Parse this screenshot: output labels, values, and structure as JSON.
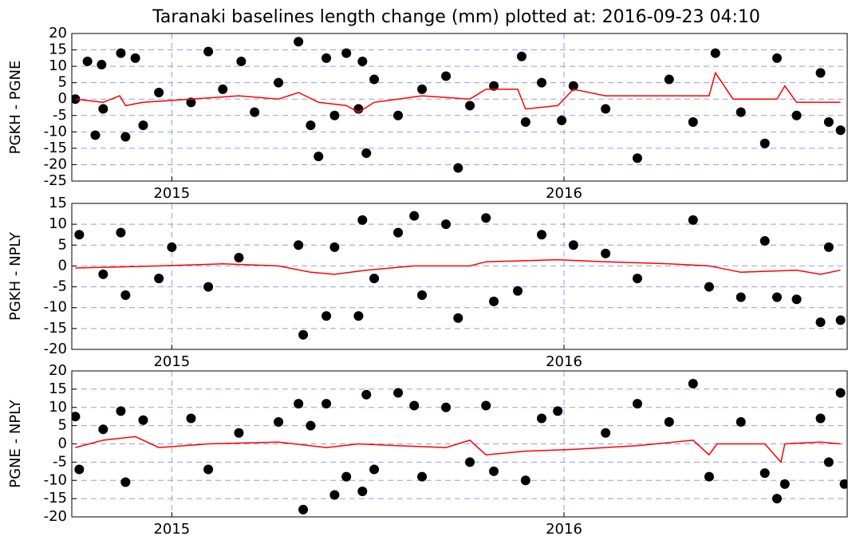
{
  "title": "Taranaki baselines length change (mm) plotted at: 2016-09-23 04:10",
  "chart_data": [
    {
      "type": "scatter",
      "ylabel": "PGKH - PGNE",
      "grid": true,
      "xlim": [
        2014.745,
        2016.722
      ],
      "xticks": [
        2015,
        2016
      ],
      "ylim": [
        -25,
        20
      ],
      "yticks": [
        -25,
        -20,
        -15,
        -10,
        -5,
        0,
        5,
        10,
        15,
        20
      ],
      "series": [
        {
          "style": "markers",
          "color": "#000000",
          "x": [
            2014.754,
            2014.785,
            2014.805,
            2014.821,
            2014.825,
            2014.87,
            2014.882,
            2014.907,
            2014.927,
            2014.967,
            2015.049,
            2015.093,
            2015.13,
            2015.177,
            2015.211,
            2015.272,
            2015.323,
            2015.354,
            2015.374,
            2015.394,
            2015.415,
            2015.445,
            2015.476,
            2015.486,
            2015.496,
            2015.516,
            2015.577,
            2015.638,
            2015.699,
            2015.73,
            2015.76,
            2015.821,
            2015.892,
            2015.902,
            2015.943,
            2015.994,
            2016.024,
            2016.106,
            2016.187,
            2016.268,
            2016.329,
            2016.386,
            2016.451,
            2016.512,
            2016.543,
            2016.593,
            2016.654,
            2016.675,
            2016.705
          ],
          "values": [
            0,
            11.5,
            -11,
            10.5,
            -3,
            14,
            -11.5,
            12.5,
            -8,
            2,
            -1,
            14.5,
            3,
            11.5,
            -4,
            5,
            17.5,
            -8,
            -17.5,
            12.5,
            -5,
            14,
            -3,
            11.5,
            -16.5,
            6,
            -5,
            3,
            7,
            -21,
            -2,
            4,
            13,
            -7,
            5,
            -6.5,
            4,
            -3,
            -18,
            6,
            -7,
            14,
            -4,
            -13.5,
            12.5,
            -5,
            8,
            -7,
            -9.5
          ]
        },
        {
          "style": "line",
          "color": "#ff0000",
          "x": [
            2014.754,
            2014.825,
            2014.867,
            2014.882,
            2014.927,
            2015.049,
            2015.171,
            2015.272,
            2015.323,
            2015.374,
            2015.445,
            2015.476,
            2015.516,
            2015.577,
            2015.638,
            2015.76,
            2015.801,
            2015.882,
            2015.902,
            2015.984,
            2016.024,
            2016.106,
            2016.268,
            2016.37,
            2016.386,
            2016.431,
            2016.543,
            2016.563,
            2016.593,
            2016.705
          ],
          "values": [
            0,
            -1,
            1,
            -2,
            -1,
            0,
            1,
            0,
            2,
            -1,
            -2,
            -4,
            -1,
            0,
            1,
            0,
            3,
            3,
            -3,
            -2,
            3,
            1,
            1,
            1,
            8,
            0,
            0,
            4,
            -1,
            -1
          ]
        }
      ]
    },
    {
      "type": "scatter",
      "ylabel": "PGKH - NPLY",
      "grid": true,
      "xlim": [
        2014.745,
        2016.722
      ],
      "xticks": [
        2015,
        2016
      ],
      "ylim": [
        -20,
        15
      ],
      "yticks": [
        -20,
        -15,
        -10,
        -5,
        0,
        5,
        10,
        15
      ],
      "series": [
        {
          "style": "markers",
          "color": "#000000",
          "x": [
            2014.764,
            2014.825,
            2014.87,
            2014.882,
            2014.967,
            2015.0,
            2015.093,
            2015.171,
            2015.323,
            2015.335,
            2015.394,
            2015.415,
            2015.476,
            2015.486,
            2015.516,
            2015.577,
            2015.618,
            2015.638,
            2015.699,
            2015.73,
            2015.801,
            2015.821,
            2015.882,
            2015.943,
            2016.024,
            2016.106,
            2016.187,
            2016.329,
            2016.37,
            2016.451,
            2016.512,
            2016.543,
            2016.593,
            2016.654,
            2016.675,
            2016.705
          ],
          "values": [
            7.5,
            -2,
            8,
            -7,
            -3,
            4.5,
            -5,
            2,
            5,
            -16.5,
            -12,
            4.5,
            -12,
            11,
            -3,
            8,
            12,
            -7,
            10,
            -12.5,
            11.5,
            -8.5,
            -6,
            7.5,
            5,
            3,
            -3,
            11,
            -5,
            -7.5,
            6,
            -7.5,
            -8,
            -13.5,
            4.5,
            -13
          ]
        },
        {
          "style": "line",
          "color": "#ff0000",
          "x": [
            2014.754,
            2014.967,
            2015.13,
            2015.272,
            2015.354,
            2015.415,
            2015.496,
            2015.618,
            2015.76,
            2015.801,
            2015.984,
            2016.106,
            2016.268,
            2016.37,
            2016.451,
            2016.593,
            2016.654,
            2016.705
          ],
          "values": [
            -0.5,
            0,
            0.5,
            0,
            -1.5,
            -2,
            -1,
            0,
            0,
            1,
            1.5,
            1,
            0.5,
            0,
            -1.5,
            -1,
            -2,
            -1
          ]
        }
      ]
    },
    {
      "type": "scatter",
      "ylabel": "PGNE - NPLY",
      "grid": true,
      "xlim": [
        2014.745,
        2016.722
      ],
      "xticks": [
        2015,
        2016
      ],
      "ylim": [
        -20,
        20
      ],
      "yticks": [
        -20,
        -15,
        -10,
        -5,
        0,
        5,
        10,
        15,
        20
      ],
      "series": [
        {
          "style": "markers",
          "color": "#000000",
          "x": [
            2014.754,
            2014.764,
            2014.825,
            2014.87,
            2014.882,
            2014.927,
            2015.049,
            2015.093,
            2015.171,
            2015.272,
            2015.323,
            2015.335,
            2015.354,
            2015.394,
            2015.415,
            2015.445,
            2015.486,
            2015.496,
            2015.516,
            2015.577,
            2015.618,
            2015.638,
            2015.699,
            2015.76,
            2015.801,
            2015.821,
            2015.902,
            2015.943,
            2015.984,
            2016.106,
            2016.187,
            2016.268,
            2016.329,
            2016.37,
            2016.451,
            2016.512,
            2016.543,
            2016.563,
            2016.654,
            2016.675,
            2016.705,
            2016.715
          ],
          "values": [
            7.5,
            -7,
            4,
            9,
            -10.5,
            6.5,
            7,
            -7,
            3,
            6,
            11,
            -18,
            5,
            11,
            -14,
            -9,
            -13,
            13.5,
            -7,
            14,
            10.5,
            -9,
            10,
            -5,
            10.5,
            -7.5,
            -10,
            7,
            9,
            3,
            11,
            6,
            16.5,
            -9,
            6,
            -8,
            -15,
            -11,
            7,
            -5,
            14,
            -11
          ]
        },
        {
          "style": "line",
          "color": "#ff0000",
          "x": [
            2014.754,
            2014.825,
            2014.907,
            2014.967,
            2015.093,
            2015.272,
            2015.394,
            2015.476,
            2015.577,
            2015.699,
            2015.76,
            2015.801,
            2015.902,
            2016.024,
            2016.106,
            2016.187,
            2016.329,
            2016.37,
            2016.39,
            2016.512,
            2016.553,
            2016.563,
            2016.654,
            2016.705
          ],
          "values": [
            -1,
            1,
            2,
            -1,
            0,
            0.5,
            -1,
            0,
            -0.5,
            -1,
            1,
            -3,
            -2,
            -1.5,
            -1,
            -0.5,
            1,
            -3,
            0,
            0,
            -5,
            0,
            0.5,
            0
          ]
        }
      ]
    }
  ]
}
